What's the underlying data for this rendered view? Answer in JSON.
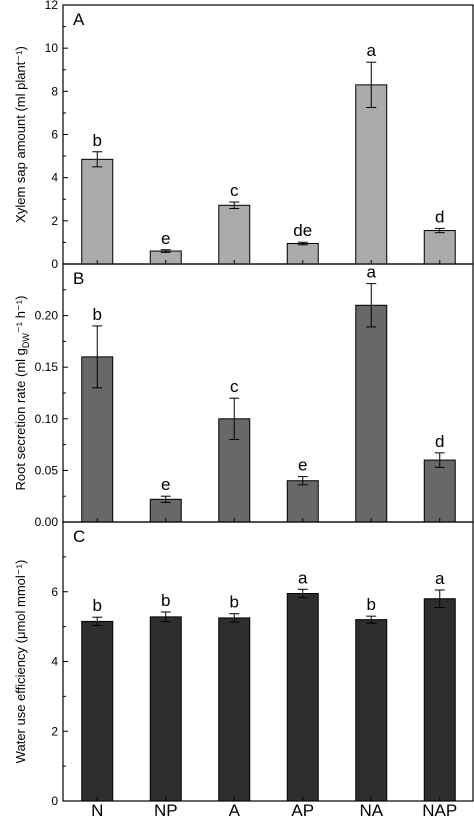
{
  "categories": [
    "N",
    "NP",
    "A",
    "AP",
    "NA",
    "NAP"
  ],
  "chart_data": [
    {
      "type": "bar",
      "panel_label": "A",
      "ylabel": "Xylem sap amount (ml plant⁻¹)",
      "ylim": [
        0,
        12
      ],
      "yticks": [
        0,
        2,
        4,
        6,
        8,
        10,
        12
      ],
      "tick_labels": [
        "0",
        "2",
        "4",
        "6",
        "8",
        "10",
        "12"
      ],
      "categories": [
        "N",
        "NP",
        "A",
        "AP",
        "NA",
        "NAP"
      ],
      "values": [
        4.85,
        0.6,
        2.72,
        0.95,
        8.3,
        1.55
      ],
      "errors": [
        0.35,
        0.06,
        0.15,
        0.06,
        1.05,
        0.1
      ],
      "letters": [
        "b",
        "e",
        "c",
        "de",
        "a",
        "d"
      ],
      "bar_color": "#ababab",
      "grid": false
    },
    {
      "type": "bar",
      "panel_label": "B",
      "ylabel": "Root secretion rate (ml g",
      "ylabel_sub": "DW",
      "ylabel_end": "⁻¹ h⁻¹)",
      "ylim": [
        0,
        0.25
      ],
      "yticks": [
        0,
        0.05,
        0.1,
        0.15,
        0.2
      ],
      "tick_labels": [
        "0.00",
        "0.05",
        "0.10",
        "0.15",
        "0.20"
      ],
      "categories": [
        "N",
        "NP",
        "A",
        "AP",
        "NA",
        "NAP"
      ],
      "values": [
        0.16,
        0.022,
        0.1,
        0.04,
        0.21,
        0.06
      ],
      "errors": [
        0.03,
        0.003,
        0.02,
        0.004,
        0.021,
        0.007
      ],
      "letters": [
        "b",
        "e",
        "c",
        "e",
        "a",
        "d"
      ],
      "bar_color": "#686868",
      "grid": false
    },
    {
      "type": "bar",
      "panel_label": "C",
      "ylabel": "Water use efficiency (μmol  mmol⁻¹)",
      "ylim": [
        0,
        8
      ],
      "yticks": [
        0,
        2,
        4,
        6,
        8
      ],
      "tick_labels": [
        "0",
        "2",
        "4",
        "6",
        ""
      ],
      "categories": [
        "N",
        "NP",
        "A",
        "AP",
        "NA",
        "NAP"
      ],
      "values": [
        5.15,
        5.28,
        5.25,
        5.95,
        5.2,
        5.8
      ],
      "errors": [
        0.12,
        0.14,
        0.12,
        0.12,
        0.1,
        0.25
      ],
      "letters": [
        "b",
        "b",
        "b",
        "a",
        "b",
        "a"
      ],
      "bar_color": "#2e2e2e",
      "grid": false
    }
  ]
}
